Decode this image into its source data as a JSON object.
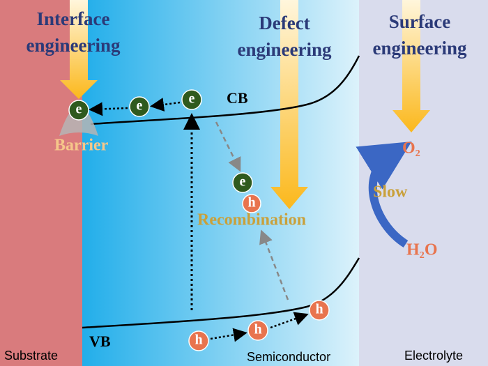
{
  "titles": {
    "interface": [
      "Interface",
      "engineering"
    ],
    "defect": [
      "Defect",
      "engineering"
    ],
    "surface": [
      "Surface",
      "engineering"
    ]
  },
  "bands": {
    "cb": "CB",
    "vb": "VB"
  },
  "labels": {
    "barrier": "Barrier",
    "recombination": "Recombination",
    "slow": "Slow",
    "o2": "O₂",
    "h2o": "H₂O"
  },
  "regions": {
    "substrate": "Substrate",
    "semiconductor": "Semiconductor",
    "electrolyte": "Electrolyte"
  },
  "electrons": [
    "e",
    "e",
    "e",
    "e"
  ],
  "holes": [
    "h",
    "h",
    "h",
    "h"
  ]
}
